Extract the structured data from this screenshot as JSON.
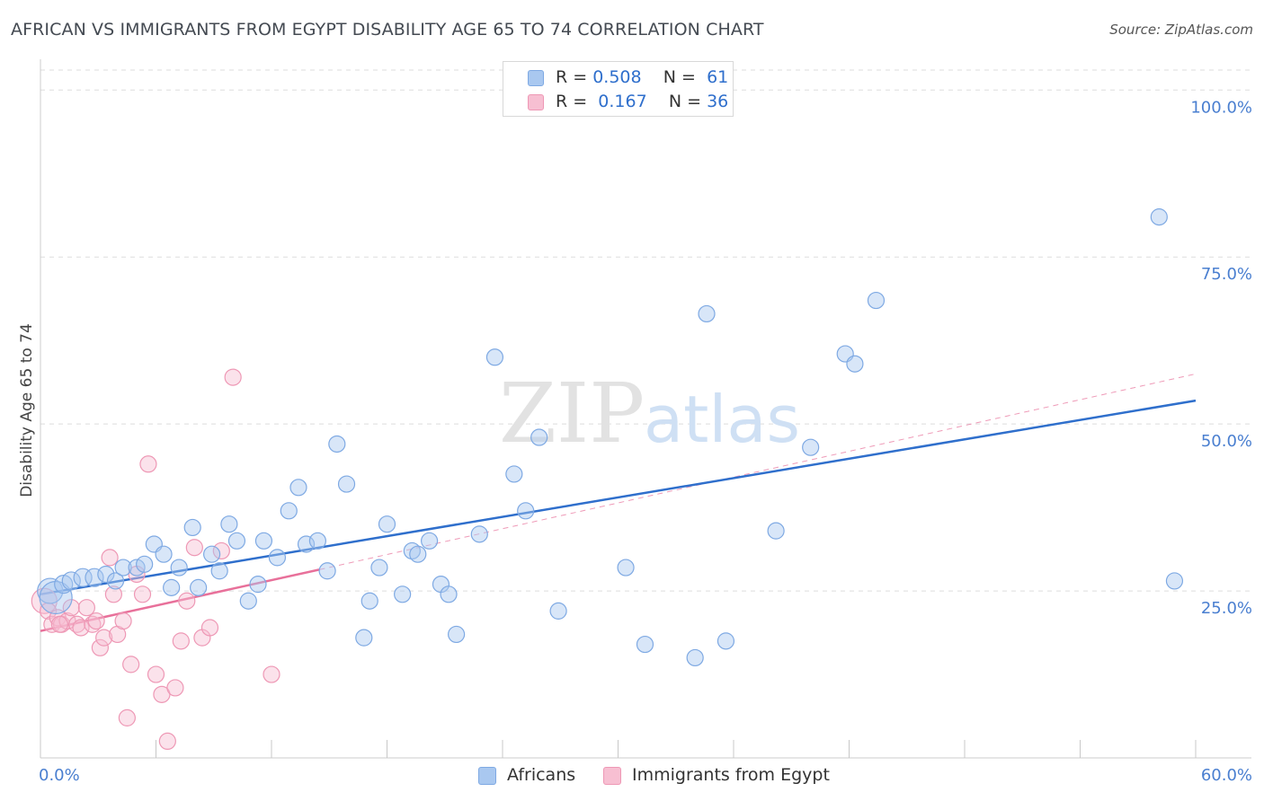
{
  "title": "AFRICAN VS IMMIGRANTS FROM EGYPT DISABILITY AGE 65 TO 74 CORRELATION CHART",
  "source": "Source: ZipAtlas.com",
  "watermark": {
    "zip": "ZIP",
    "atlas": "atlas"
  },
  "legend_top": [
    {
      "r_label": "R =",
      "r_value": "0.508",
      "n_label": "N =",
      "n_value": "61",
      "color": "#a9c8f0",
      "border": "#7ea9e3"
    },
    {
      "r_label": "R =",
      "r_value": "0.167",
      "n_label": "N =",
      "n_value": "36",
      "color": "#f7bfd2",
      "border": "#ee98b5"
    }
  ],
  "legend_bottom": [
    {
      "label": "Africans",
      "color": "#a9c8f0",
      "border": "#7ea9e3"
    },
    {
      "label": "Immigrants from Egypt",
      "color": "#f7bfd2",
      "border": "#ee98b5"
    }
  ],
  "colors": {
    "blue_point_fill": "rgba(169,200,240,0.45)",
    "blue_point_stroke": "#7ea9e3",
    "pink_point_fill": "rgba(247,191,210,0.45)",
    "pink_point_stroke": "#ee98b5",
    "blue_line": "#2f6fcc",
    "pink_line": "#e8709a",
    "tick_label": "#4a7fd0",
    "grid": "#dddddd"
  },
  "chart_data": {
    "type": "scatter",
    "title": "AFRICAN VS IMMIGRANTS FROM EGYPT DISABILITY AGE 65 TO 74 CORRELATION CHART",
    "xlabel": "",
    "ylabel": "Disability Age 65 to 74",
    "xlim": [
      0,
      60
    ],
    "ylim": [
      0,
      103
    ],
    "x_tick_labels": [
      "0.0%",
      "60.0%"
    ],
    "y_tick_labels": [
      "100.0%",
      "75.0%",
      "50.0%",
      "25.0%"
    ],
    "y_ticks": [
      100,
      75,
      50,
      25
    ],
    "grid": true,
    "legend_position": "top-center",
    "series": [
      {
        "name": "Africans",
        "r": 0.508,
        "n": 61,
        "trend": {
          "x0": 0,
          "y0": 24.5,
          "x1": 60,
          "y1": 53.5,
          "style": "solid"
        },
        "points": [
          [
            0.5,
            25,
            14
          ],
          [
            0.8,
            24,
            18
          ],
          [
            1.2,
            26,
            10
          ],
          [
            1.6,
            26.5,
            10
          ],
          [
            2.2,
            27,
            10
          ],
          [
            2.8,
            27,
            10
          ],
          [
            3.4,
            27.5,
            9
          ],
          [
            3.9,
            26.5,
            9
          ],
          [
            4.3,
            28.5,
            9
          ],
          [
            5.0,
            28.5,
            9
          ],
          [
            5.4,
            29,
            9
          ],
          [
            5.9,
            32,
            9
          ],
          [
            6.4,
            30.5,
            9
          ],
          [
            6.8,
            25.5,
            9
          ],
          [
            7.2,
            28.5,
            9
          ],
          [
            7.9,
            34.5,
            9
          ],
          [
            8.2,
            25.5,
            9
          ],
          [
            8.9,
            30.5,
            9
          ],
          [
            9.3,
            28,
            9
          ],
          [
            9.8,
            35,
            9
          ],
          [
            10.2,
            32.5,
            9
          ],
          [
            10.8,
            23.5,
            9
          ],
          [
            11.3,
            26,
            9
          ],
          [
            11.6,
            32.5,
            9
          ],
          [
            12.3,
            30,
            9
          ],
          [
            12.9,
            37,
            9
          ],
          [
            13.4,
            40.5,
            9
          ],
          [
            13.8,
            32,
            9
          ],
          [
            14.4,
            32.5,
            9
          ],
          [
            14.9,
            28,
            9
          ],
          [
            15.4,
            47,
            9
          ],
          [
            15.9,
            41,
            9
          ],
          [
            16.8,
            18,
            9
          ],
          [
            17.1,
            23.5,
            9
          ],
          [
            17.6,
            28.5,
            9
          ],
          [
            18.0,
            35,
            9
          ],
          [
            18.8,
            24.5,
            9
          ],
          [
            19.3,
            31,
            9
          ],
          [
            19.6,
            30.5,
            9
          ],
          [
            20.2,
            32.5,
            9
          ],
          [
            20.8,
            26,
            9
          ],
          [
            21.2,
            24.5,
            9
          ],
          [
            21.6,
            18.5,
            9
          ],
          [
            22.8,
            33.5,
            9
          ],
          [
            23.6,
            60,
            9
          ],
          [
            24.6,
            42.5,
            9
          ],
          [
            25.2,
            37,
            9
          ],
          [
            25.9,
            48,
            9
          ],
          [
            26.9,
            22,
            9
          ],
          [
            30.4,
            28.5,
            9
          ],
          [
            31.4,
            17,
            9
          ],
          [
            34.0,
            15,
            9
          ],
          [
            34.6,
            66.5,
            9
          ],
          [
            35.6,
            17.5,
            9
          ],
          [
            38.2,
            34,
            9
          ],
          [
            40.0,
            46.5,
            9
          ],
          [
            41.8,
            60.5,
            9
          ],
          [
            42.3,
            59,
            9
          ],
          [
            43.4,
            68.5,
            9
          ],
          [
            58.1,
            81,
            9
          ],
          [
            58.9,
            26.5,
            9
          ]
        ]
      },
      {
        "name": "Immigrants from Egypt",
        "r": 0.167,
        "n": 36,
        "trend": {
          "x0": 0,
          "y0": 19,
          "x1": 14.5,
          "y1": 28.2,
          "style": "solid",
          "extend_to": {
            "x": 60,
            "y": 57.5,
            "style": "dashed"
          }
        },
        "points": [
          [
            0.2,
            23.5,
            14
          ],
          [
            0.4,
            22,
            9
          ],
          [
            0.6,
            20,
            9
          ],
          [
            0.9,
            21,
            9
          ],
          [
            1.1,
            20,
            9
          ],
          [
            1.4,
            20.5,
            9
          ],
          [
            1.6,
            22.5,
            9
          ],
          [
            1.9,
            20,
            9
          ],
          [
            2.1,
            19.5,
            9
          ],
          [
            2.4,
            22.5,
            9
          ],
          [
            2.7,
            20,
            9
          ],
          [
            2.9,
            20.5,
            9
          ],
          [
            3.1,
            16.5,
            9
          ],
          [
            3.3,
            18,
            9
          ],
          [
            3.6,
            30,
            9
          ],
          [
            3.8,
            24.5,
            9
          ],
          [
            4.0,
            18.5,
            9
          ],
          [
            4.3,
            20.5,
            9
          ],
          [
            4.5,
            6,
            9
          ],
          [
            4.7,
            14,
            9
          ],
          [
            5.0,
            27.5,
            9
          ],
          [
            5.3,
            24.5,
            9
          ],
          [
            5.6,
            44,
            9
          ],
          [
            6.0,
            12.5,
            9
          ],
          [
            6.3,
            9.5,
            9
          ],
          [
            6.6,
            2.5,
            9
          ],
          [
            7.0,
            10.5,
            9
          ],
          [
            7.3,
            17.5,
            9
          ],
          [
            7.6,
            23.5,
            9
          ],
          [
            8.0,
            31.5,
            9
          ],
          [
            8.4,
            18,
            9
          ],
          [
            8.8,
            19.5,
            9
          ],
          [
            9.4,
            31,
            9
          ],
          [
            10.0,
            57,
            9
          ],
          [
            12.0,
            12.5,
            9
          ],
          [
            1.0,
            20,
            9
          ]
        ]
      }
    ]
  }
}
